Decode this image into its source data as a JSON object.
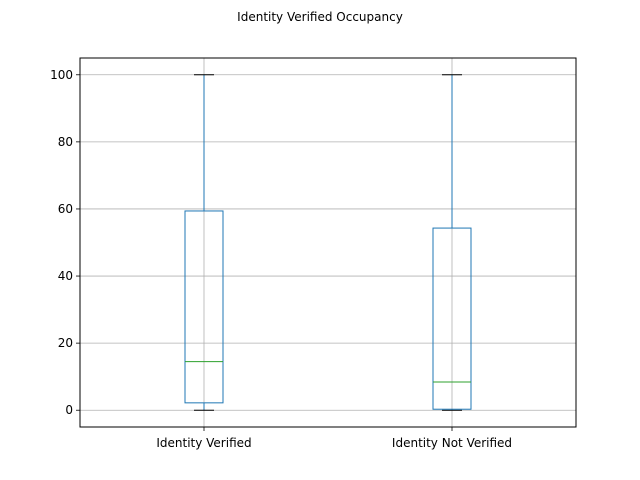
{
  "chart_data": {
    "type": "box",
    "title": "Identity Verified Occupancy",
    "xlabel": "",
    "ylabel": "",
    "categories": [
      "Identity Verified",
      "Identity Not Verified"
    ],
    "boxes": [
      {
        "category": "Identity Verified",
        "whisker_low": 0,
        "q1": 2.2,
        "median": 14.5,
        "q3": 59.4,
        "whisker_high": 100
      },
      {
        "category": "Identity Not Verified",
        "whisker_low": 0,
        "q1": 0.3,
        "median": 8.4,
        "q3": 54.3,
        "whisker_high": 100
      }
    ],
    "yticks": [
      0,
      20,
      40,
      60,
      80,
      100
    ],
    "ylim": [
      -5,
      105
    ],
    "grid": true,
    "colors": {
      "box": "#1f77b4",
      "median": "#2ca02c",
      "cap": "#000000",
      "grid": "#b0b0b0"
    }
  }
}
